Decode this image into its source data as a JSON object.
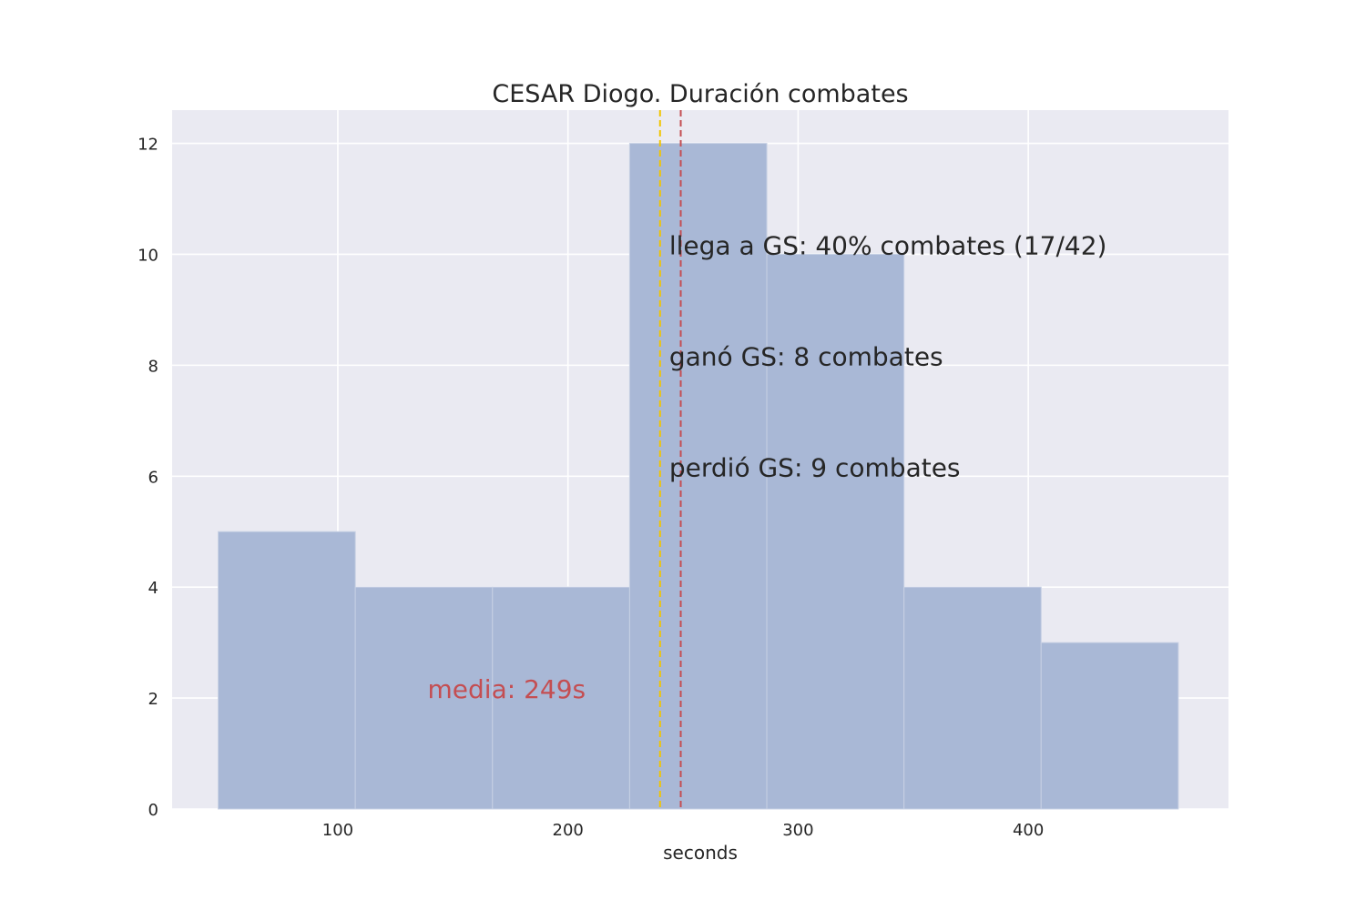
{
  "chart_data": {
    "type": "bar",
    "title": "CESAR Diogo. Duración combates",
    "xlabel": "seconds",
    "ylabel": "",
    "xlim": [
      28,
      487
    ],
    "ylim": [
      0,
      12.6
    ],
    "xticks": [
      100,
      200,
      300,
      400
    ],
    "yticks": [
      0,
      2,
      4,
      6,
      8,
      10,
      12
    ],
    "grid": true,
    "bins": [
      {
        "x0": 48,
        "x1": 107.6,
        "count": 5
      },
      {
        "x0": 107.6,
        "x1": 167.2,
        "count": 4
      },
      {
        "x0": 167.2,
        "x1": 226.8,
        "count": 4
      },
      {
        "x0": 226.8,
        "x1": 286.4,
        "count": 12
      },
      {
        "x0": 286.4,
        "x1": 346,
        "count": 10
      },
      {
        "x0": 346,
        "x1": 405.6,
        "count": 4
      },
      {
        "x0": 405.6,
        "x1": 465.2,
        "count": 3
      }
    ],
    "vlines": [
      {
        "name": "media",
        "x": 249,
        "color": "#c44e52"
      },
      {
        "name": "",
        "x": 240,
        "color": "#f2c500"
      }
    ],
    "annotations": [
      {
        "text": "llega a GS: 40% combates (17/42)",
        "x": 244,
        "y": 10
      },
      {
        "text": "ganó GS: 8 combates",
        "x": 244,
        "y": 8
      },
      {
        "text": "perdió GS: 9 combates",
        "x": 244,
        "y": 6
      }
    ],
    "mean_label": {
      "text": "media: 249s",
      "x": 139,
      "y": 2,
      "color": "#c44e52"
    },
    "colors": {
      "bar": "#a9b8d6",
      "background": "#eaeaf2",
      "grid": "#ffffff"
    }
  }
}
